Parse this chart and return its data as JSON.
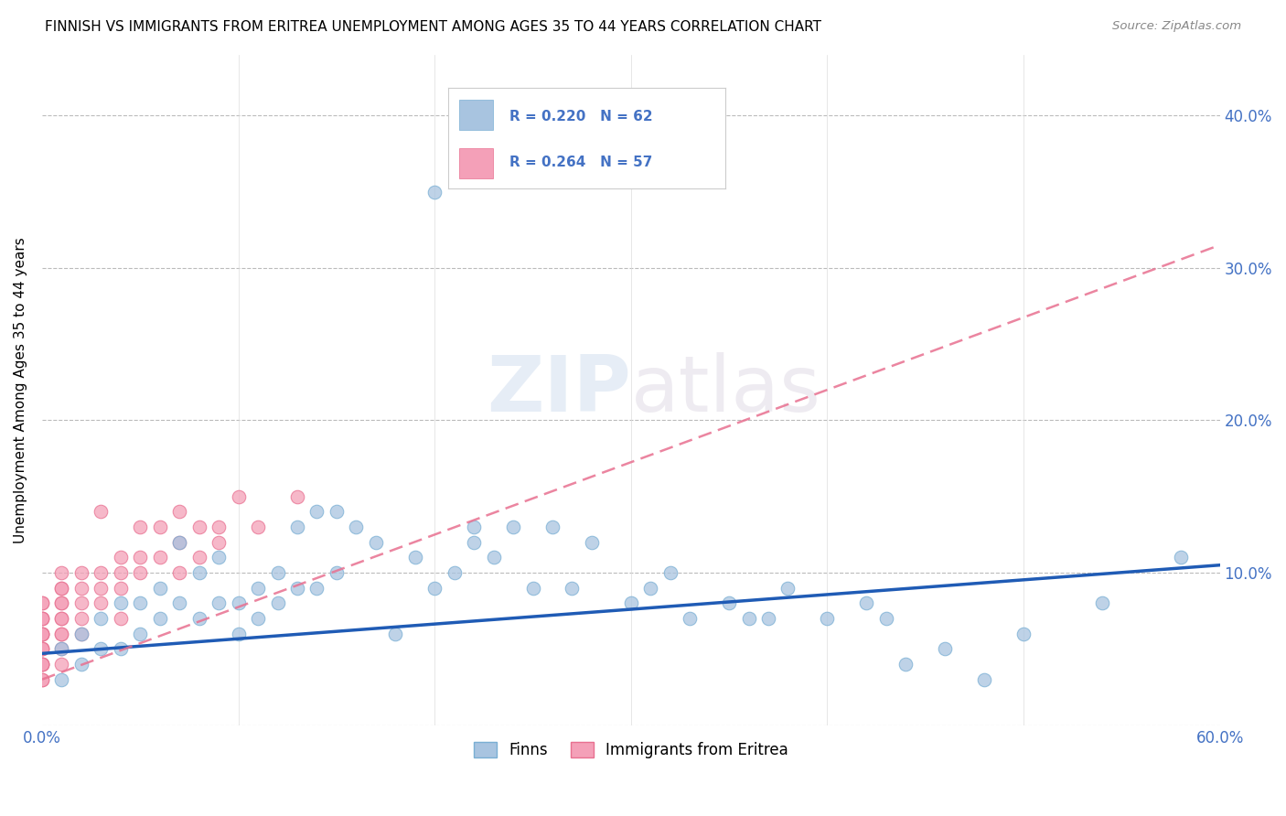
{
  "title": "FINNISH VS IMMIGRANTS FROM ERITREA UNEMPLOYMENT AMONG AGES 35 TO 44 YEARS CORRELATION CHART",
  "source": "Source: ZipAtlas.com",
  "tick_color": "#4472C4",
  "ylabel": "Unemployment Among Ages 35 to 44 years",
  "xlim": [
    0.0,
    0.6
  ],
  "ylim": [
    0.0,
    0.44
  ],
  "xtick_vals": [
    0.0,
    0.1,
    0.2,
    0.3,
    0.4,
    0.5,
    0.6
  ],
  "xtick_labels": [
    "0.0%",
    "",
    "",
    "",
    "",
    "",
    "60.0%"
  ],
  "ytick_vals": [
    0.0,
    0.1,
    0.2,
    0.3,
    0.4
  ],
  "ytick_labels_right": [
    "",
    "10.0%",
    "20.0%",
    "30.0%",
    "40.0%"
  ],
  "R_finns": 0.22,
  "N_finns": 62,
  "R_eritrea": 0.264,
  "N_eritrea": 57,
  "finns_color": "#A8C4E0",
  "finns_edge_color": "#7AAFD4",
  "eritrea_color": "#F4A0B8",
  "eritrea_edge_color": "#E87090",
  "finns_line_color": "#1F5BB5",
  "eritrea_line_color": "#E87090",
  "watermark": "ZIPatlas",
  "legend_labels": [
    "Finns",
    "Immigrants from Eritrea"
  ],
  "finns_x": [
    0.01,
    0.01,
    0.02,
    0.02,
    0.03,
    0.03,
    0.04,
    0.04,
    0.05,
    0.05,
    0.06,
    0.06,
    0.07,
    0.07,
    0.08,
    0.08,
    0.09,
    0.09,
    0.1,
    0.1,
    0.11,
    0.11,
    0.12,
    0.12,
    0.13,
    0.13,
    0.14,
    0.14,
    0.15,
    0.15,
    0.16,
    0.17,
    0.18,
    0.19,
    0.2,
    0.2,
    0.21,
    0.22,
    0.22,
    0.23,
    0.24,
    0.25,
    0.26,
    0.27,
    0.28,
    0.3,
    0.31,
    0.32,
    0.33,
    0.35,
    0.36,
    0.37,
    0.38,
    0.4,
    0.42,
    0.43,
    0.44,
    0.46,
    0.48,
    0.5,
    0.54,
    0.58
  ],
  "finns_y": [
    0.05,
    0.03,
    0.06,
    0.04,
    0.07,
    0.05,
    0.08,
    0.05,
    0.08,
    0.06,
    0.09,
    0.07,
    0.12,
    0.08,
    0.1,
    0.07,
    0.11,
    0.08,
    0.08,
    0.06,
    0.09,
    0.07,
    0.1,
    0.08,
    0.13,
    0.09,
    0.14,
    0.09,
    0.14,
    0.1,
    0.13,
    0.12,
    0.06,
    0.11,
    0.35,
    0.09,
    0.1,
    0.13,
    0.12,
    0.11,
    0.13,
    0.09,
    0.13,
    0.09,
    0.12,
    0.08,
    0.09,
    0.1,
    0.07,
    0.08,
    0.07,
    0.07,
    0.09,
    0.07,
    0.08,
    0.07,
    0.04,
    0.05,
    0.03,
    0.06,
    0.08,
    0.11
  ],
  "eritrea_x": [
    0.0,
    0.0,
    0.0,
    0.0,
    0.0,
    0.0,
    0.0,
    0.0,
    0.0,
    0.0,
    0.0,
    0.0,
    0.0,
    0.0,
    0.0,
    0.0,
    0.0,
    0.0,
    0.01,
    0.01,
    0.01,
    0.01,
    0.01,
    0.01,
    0.01,
    0.01,
    0.01,
    0.01,
    0.01,
    0.02,
    0.02,
    0.02,
    0.02,
    0.02,
    0.03,
    0.03,
    0.03,
    0.03,
    0.04,
    0.04,
    0.04,
    0.04,
    0.05,
    0.05,
    0.05,
    0.06,
    0.06,
    0.07,
    0.07,
    0.07,
    0.08,
    0.08,
    0.09,
    0.09,
    0.1,
    0.11,
    0.13
  ],
  "eritrea_y": [
    0.05,
    0.06,
    0.04,
    0.07,
    0.08,
    0.03,
    0.06,
    0.04,
    0.07,
    0.05,
    0.08,
    0.06,
    0.04,
    0.03,
    0.05,
    0.07,
    0.06,
    0.04,
    0.09,
    0.08,
    0.07,
    0.06,
    0.05,
    0.1,
    0.09,
    0.07,
    0.06,
    0.08,
    0.04,
    0.1,
    0.09,
    0.08,
    0.07,
    0.06,
    0.1,
    0.09,
    0.08,
    0.14,
    0.1,
    0.09,
    0.11,
    0.07,
    0.13,
    0.11,
    0.1,
    0.13,
    0.11,
    0.14,
    0.12,
    0.1,
    0.13,
    0.11,
    0.13,
    0.12,
    0.15,
    0.13,
    0.15
  ],
  "finns_line_x": [
    0.0,
    0.6
  ],
  "finns_line_y": [
    0.047,
    0.105
  ],
  "eritrea_line_x": [
    0.0,
    0.6
  ],
  "eritrea_line_y": [
    0.03,
    0.315
  ]
}
